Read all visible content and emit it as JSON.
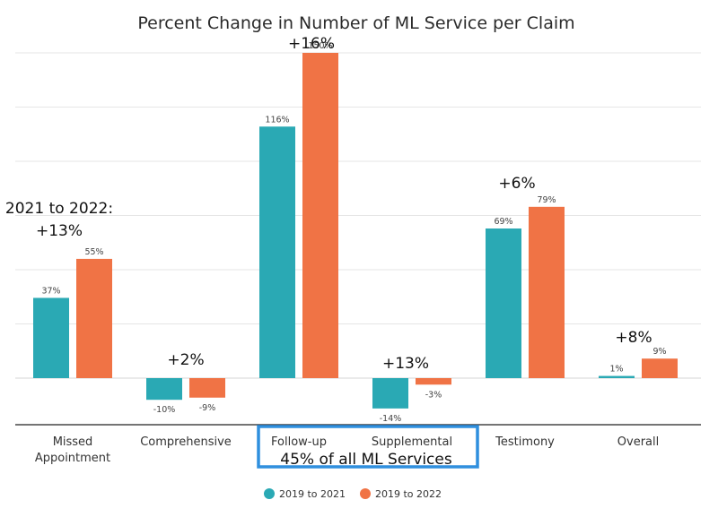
{
  "chart_data": {
    "type": "bar",
    "title": "Percent Change in Number of ML Service per Claim",
    "xlabel": "",
    "ylabel": "",
    "categories": [
      "Missed Appointment",
      "Comprehensive",
      "Follow-up",
      "Supplemental",
      "Testimony",
      "Overall"
    ],
    "category_lines": [
      [
        "Missed",
        "Appointment"
      ],
      [
        "Comprehensive"
      ],
      [
        "Follow-up"
      ],
      [
        "Supplemental"
      ],
      [
        "Testimony"
      ],
      [
        "Overall"
      ]
    ],
    "series": [
      {
        "name": "2019 to 2021",
        "color": "#2aa9b4",
        "values": [
          37,
          -10,
          116,
          -14,
          69,
          1
        ],
        "labels": [
          "37%",
          "-10%",
          "116%",
          "-14%",
          "69%",
          "1%"
        ]
      },
      {
        "name": "2019 to 2022",
        "color": "#f07345",
        "values": [
          55,
          -9,
          150,
          -3,
          79,
          9
        ],
        "labels": [
          "55%",
          "-9%",
          "150%",
          "-3%",
          "79%",
          "9%"
        ]
      }
    ],
    "ylim": [
      -20,
      150
    ],
    "grid": true,
    "legend": "bottom-center",
    "annotations": {
      "change_header": "2021 to 2022:",
      "changes": [
        "+13%",
        "+2%",
        "+16%",
        "+13%",
        "+6%",
        "+8%"
      ],
      "highlight_note": "45% of all ML Services",
      "highlight_color": "#2f8fde"
    }
  }
}
